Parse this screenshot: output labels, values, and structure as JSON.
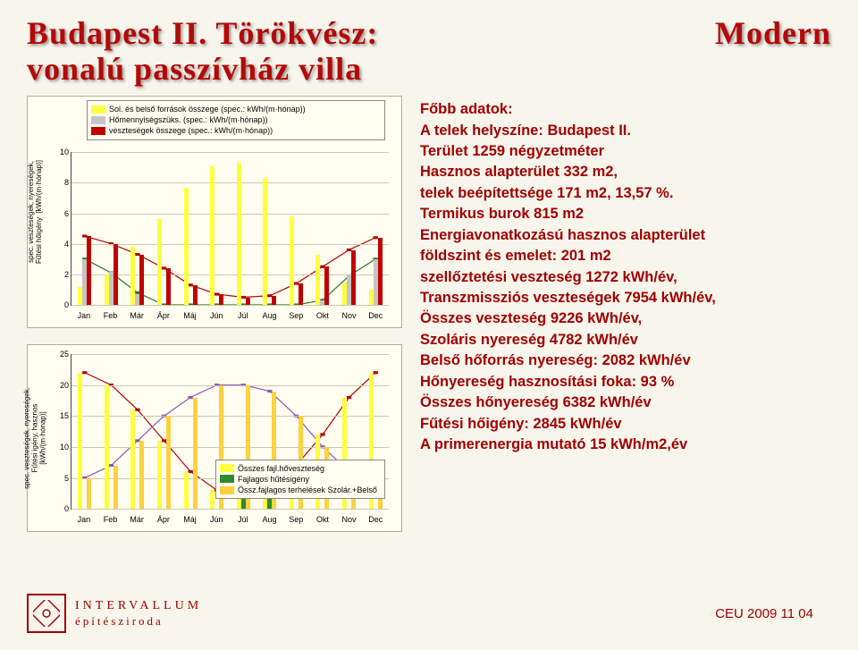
{
  "colors": {
    "bg": "#f8f6ec",
    "title": "#b30909",
    "text": "#a00000",
    "sw_yellow": "#ffff40",
    "sw_gray": "#c4c4c4",
    "sw_red": "#c00000",
    "sw_green": "#2e8b2e",
    "sw_yellow2": "#ffd040",
    "line_green": "#2a7a2a",
    "line_red": "#b00000",
    "line_purple": "#8a58b8",
    "footer_text": "#a00000"
  },
  "title": {
    "left": "Budapest II. Törökvész:",
    "right": "Modern",
    "line2": "vonalú passzívház villa"
  },
  "right_text": [
    "Főbb adatok:",
    "A telek helyszíne: Budapest II.",
    "Terület 1259  négyzetméter",
    "Hasznos alapterület  332 m2,",
    "telek beépítettsége  171 m2,  13,57 %.",
    "Termikus burok 815 m2",
    "Energiavonatkozású hasznos alapterület",
    "földszint és emelet: 201 m2",
    "szellőztetési veszteség   1272 kWh/év,",
    "Transzmissziós veszteségek 7954 kWh/év,",
    "Összes veszteség 9226 kWh/év,",
    "Szoláris nyereség 4782 kWh/év",
    "Belső hőforrás nyereség: 2082 kWh/év",
    "Hőnyereség hasznosítási foka: 93 %",
    "Összes hőnyereség 6382 kWh/év",
    "Fűtési hőigény: 2845 kWh/év",
    "A primerenergia mutató 15 kWh/m2,év"
  ],
  "months": [
    "Jan",
    "Feb",
    "Már",
    "Ápr",
    "Máj",
    "Jún",
    "Júl",
    "Aug",
    "Sep",
    "Okt",
    "Nov",
    "Dec"
  ],
  "chart1": {
    "y_label": "spec. veszteségek, nyereségek,\nFűtési hőigény  [kWh/(m·hónap)]",
    "ymax": 10,
    "yticks": [
      0,
      2,
      4,
      6,
      8,
      10
    ],
    "legend": [
      {
        "color": "sw_yellow",
        "label": "Sol. és belső források összege (spec.: kWh/(m·hónap))"
      },
      {
        "color": "sw_gray",
        "label": "Hőmennyiségszüks. (spec.: kWh/(m·hónap))"
      },
      {
        "color": "sw_red",
        "label": "veszteségek összege (spec.: kWh/(m·hónap))"
      }
    ],
    "bars": {
      "yellow": [
        1.2,
        2.0,
        3.8,
        5.6,
        7.7,
        9.1,
        9.3,
        8.3,
        5.8,
        3.3,
        1.5,
        1.0
      ],
      "gray": [
        3.0,
        2.2,
        0.7,
        0.0,
        0.0,
        0.0,
        0.0,
        0.0,
        0.0,
        0.3,
        2.0,
        3.0
      ],
      "red": [
        4.5,
        4.0,
        3.3,
        2.4,
        1.3,
        0.7,
        0.5,
        0.6,
        1.4,
        2.5,
        3.6,
        4.4
      ]
    },
    "line_green": [
      3.0,
      2.1,
      0.8,
      0.0,
      0.0,
      0.0,
      0.0,
      0.0,
      0.0,
      0.3,
      1.9,
      3.0
    ],
    "line_red": [
      4.5,
      4.0,
      3.3,
      2.4,
      1.3,
      0.7,
      0.5,
      0.6,
      1.4,
      2.5,
      3.6,
      4.4
    ]
  },
  "chart2": {
    "y_label": "spec. veszteségek, nyereségek,\nFűtési igény, hasznos\n[kWh/(m·hónap)]",
    "ymax": 25,
    "yticks": [
      0,
      5,
      10,
      15,
      20,
      25
    ],
    "legend": [
      {
        "color": "sw_yellow",
        "label": "Összes fajl.hőveszteség"
      },
      {
        "color": "sw_green",
        "label": "Fajlagos hűtésigény"
      },
      {
        "color": "sw_yellow2",
        "label": "Össz.fajlagos terhelések Szolár.+Belső"
      }
    ],
    "bars": {
      "yellow": [
        22,
        20,
        16,
        11,
        6,
        3,
        2,
        3,
        7,
        12,
        18,
        22
      ],
      "green": [
        0,
        0,
        0,
        0,
        0,
        0,
        6,
        6,
        0,
        0,
        0,
        0
      ],
      "yellow2": [
        5,
        7,
        11,
        15,
        18,
        20,
        20,
        19,
        15,
        10,
        6,
        5
      ]
    },
    "line_red": [
      22,
      20,
      16,
      11,
      6,
      3,
      2,
      3,
      7,
      12,
      18,
      22
    ],
    "line_purple": [
      5,
      7,
      11,
      15,
      18,
      20,
      20,
      19,
      15,
      10,
      6,
      5
    ]
  },
  "footer": {
    "brand1": "INTERVALLUM",
    "brand2": "építésziroda",
    "right": "CEU   2009  11 04"
  }
}
